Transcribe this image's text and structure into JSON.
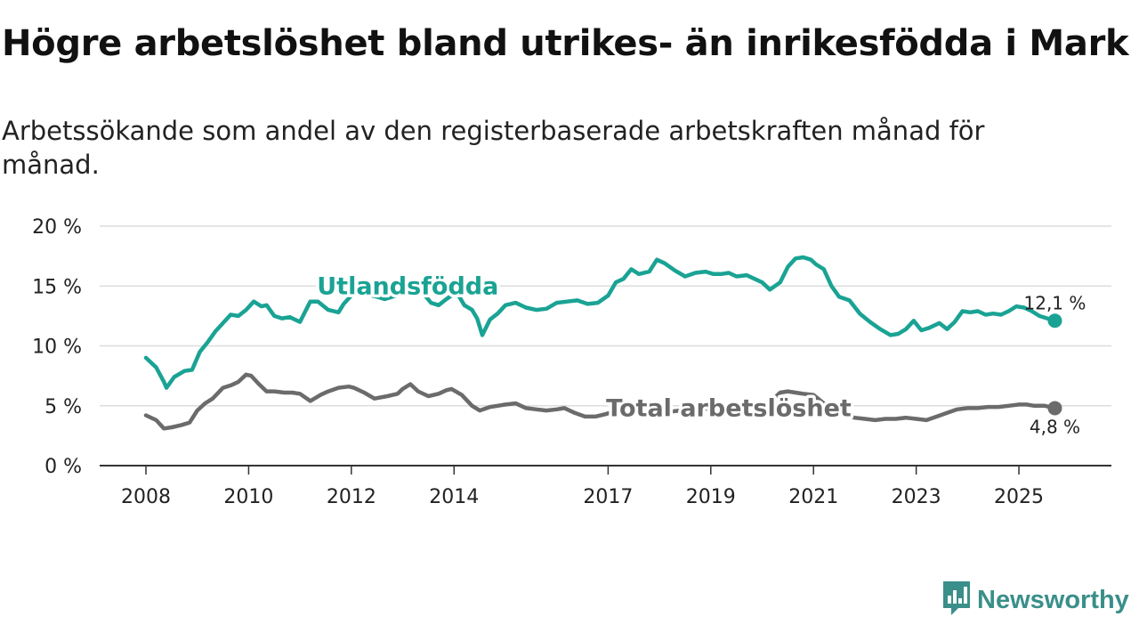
{
  "header": {
    "title": "Högre arbetslöshet bland utrikes- än inrikesfödda i Mark",
    "subtitle": "Arbetssökande som andel av den registerbaserade arbetskraften månad för månad."
  },
  "brand": {
    "name": "Newsworthy",
    "icon": "newsworthy-logo-icon",
    "color": "#3a8f8a"
  },
  "chart_data": {
    "type": "line",
    "title": "Högre arbetslöshet bland utrikes- än inrikesfödda i Mark",
    "xlabel": "",
    "ylabel": "",
    "ylim": [
      0,
      20
    ],
    "xlim": [
      2008.0,
      2025.9
    ],
    "yticks": [
      0,
      5,
      10,
      15,
      20
    ],
    "ytick_labels": [
      "0 %",
      "5 %",
      "10 %",
      "15 %",
      "20 %"
    ],
    "xticks": [
      2008,
      2010,
      2012,
      2014,
      2017,
      2019,
      2021,
      2023,
      2025
    ],
    "xtick_labels": [
      "2008",
      "2010",
      "2012",
      "2014",
      "2017",
      "2019",
      "2021",
      "2023",
      "2025"
    ],
    "grid": true,
    "series": [
      {
        "name": "Utlandsfödda",
        "color": "#1aa394",
        "end_label": "12,1 %",
        "x": [
          2008.0,
          2008.2,
          2008.35,
          2008.4,
          2008.55,
          2008.75,
          2008.9,
          2009.05,
          2009.2,
          2009.35,
          2009.5,
          2009.65,
          2009.8,
          2009.95,
          2010.1,
          2010.25,
          2010.35,
          2010.5,
          2010.65,
          2010.8,
          2011.0,
          2011.2,
          2011.35,
          2011.55,
          2011.75,
          2011.85,
          2012.0,
          2012.15,
          2012.3,
          2012.4,
          2012.5,
          2012.65,
          2012.8,
          2012.95,
          2013.1,
          2013.25,
          2013.4,
          2013.55,
          2013.7,
          2013.85,
          2014.05,
          2014.2,
          2014.35,
          2014.45,
          2014.55,
          2014.7,
          2014.85,
          2015.0,
          2015.2,
          2015.4,
          2015.6,
          2015.8,
          2016.0,
          2016.2,
          2016.4,
          2016.6,
          2016.8,
          2017.0,
          2017.15,
          2017.3,
          2017.45,
          2017.6,
          2017.8,
          2017.95,
          2018.1,
          2018.3,
          2018.5,
          2018.7,
          2018.9,
          2019.05,
          2019.2,
          2019.35,
          2019.5,
          2019.7,
          2019.85,
          2020.0,
          2020.15,
          2020.35,
          2020.5,
          2020.65,
          2020.8,
          2020.95,
          2021.05,
          2021.2,
          2021.35,
          2021.5,
          2021.7,
          2021.9,
          2022.1,
          2022.3,
          2022.5,
          2022.65,
          2022.8,
          2022.95,
          2023.1,
          2023.25,
          2023.45,
          2023.6,
          2023.75,
          2023.9,
          2024.05,
          2024.2,
          2024.35,
          2024.5,
          2024.65,
          2024.8,
          2024.95,
          2025.1,
          2025.25,
          2025.4,
          2025.55,
          2025.7
        ],
        "values": [
          9.0,
          8.2,
          7.0,
          6.5,
          7.4,
          7.9,
          8.0,
          9.5,
          10.3,
          11.2,
          11.9,
          12.6,
          12.5,
          13.0,
          13.7,
          13.3,
          13.4,
          12.5,
          12.3,
          12.4,
          12.0,
          13.7,
          13.7,
          13.0,
          12.8,
          13.5,
          14.2,
          15.3,
          14.5,
          14.2,
          14.1,
          13.9,
          14.1,
          14.3,
          14.6,
          14.7,
          14.4,
          13.6,
          13.4,
          13.9,
          14.5,
          13.4,
          13.0,
          12.3,
          10.9,
          12.2,
          12.7,
          13.4,
          13.6,
          13.2,
          13.0,
          13.1,
          13.6,
          13.7,
          13.8,
          13.5,
          13.6,
          14.2,
          15.3,
          15.6,
          16.4,
          16.0,
          16.2,
          17.2,
          16.9,
          16.3,
          15.8,
          16.1,
          16.2,
          16.0,
          16.0,
          16.1,
          15.8,
          15.9,
          15.6,
          15.3,
          14.7,
          15.3,
          16.6,
          17.3,
          17.4,
          17.2,
          16.8,
          16.4,
          15.0,
          14.1,
          13.8,
          12.7,
          12.0,
          11.4,
          10.9,
          11.0,
          11.4,
          12.1,
          11.3,
          11.5,
          11.9,
          11.4,
          12.0,
          12.9,
          12.8,
          12.9,
          12.6,
          12.7,
          12.6,
          12.9,
          13.3,
          13.2,
          12.9,
          12.5,
          12.3,
          12.1
        ]
      },
      {
        "name": "Total arbetslöshet",
        "color": "#6b6b6b",
        "end_label": "4,8 %",
        "x": [
          2008.0,
          2008.2,
          2008.35,
          2008.5,
          2008.7,
          2008.85,
          2009.0,
          2009.15,
          2009.3,
          2009.5,
          2009.65,
          2009.8,
          2009.95,
          2010.05,
          2010.2,
          2010.35,
          2010.5,
          2010.7,
          2010.85,
          2011.0,
          2011.2,
          2011.4,
          2011.55,
          2011.75,
          2011.95,
          2012.05,
          2012.25,
          2012.45,
          2012.7,
          2012.9,
          2013.0,
          2013.15,
          2013.3,
          2013.5,
          2013.7,
          2013.85,
          2013.95,
          2014.15,
          2014.35,
          2014.5,
          2014.7,
          2014.85,
          2015.0,
          2015.2,
          2015.4,
          2015.6,
          2015.8,
          2016.0,
          2016.15,
          2016.35,
          2016.55,
          2016.75,
          2016.95,
          2017.1,
          2017.25,
          2017.45,
          2017.6,
          2017.8,
          2018.0,
          2018.2,
          2018.4,
          2018.6,
          2018.8,
          2019.0,
          2019.2,
          2019.4,
          2019.6,
          2019.8,
          2020.0,
          2020.2,
          2020.35,
          2020.5,
          2020.65,
          2020.8,
          2021.0,
          2021.2,
          2021.4,
          2021.6,
          2021.8,
          2022.0,
          2022.2,
          2022.4,
          2022.6,
          2022.8,
          2023.0,
          2023.2,
          2023.4,
          2023.6,
          2023.8,
          2024.0,
          2024.2,
          2024.4,
          2024.6,
          2024.8,
          2025.0,
          2025.15,
          2025.3,
          2025.5,
          2025.7
        ],
        "values": [
          4.2,
          3.8,
          3.1,
          3.2,
          3.4,
          3.6,
          4.6,
          5.2,
          5.6,
          6.5,
          6.7,
          7.0,
          7.6,
          7.5,
          6.8,
          6.2,
          6.2,
          6.1,
          6.1,
          6.0,
          5.4,
          5.9,
          6.2,
          6.5,
          6.6,
          6.5,
          6.1,
          5.6,
          5.8,
          6.0,
          6.4,
          6.8,
          6.2,
          5.8,
          6.0,
          6.3,
          6.4,
          5.9,
          5.0,
          4.6,
          4.9,
          5.0,
          5.1,
          5.2,
          4.8,
          4.7,
          4.6,
          4.7,
          4.8,
          4.4,
          4.1,
          4.1,
          4.3,
          4.5,
          4.3,
          4.3,
          4.4,
          4.5,
          4.6,
          4.5,
          4.6,
          4.7,
          4.7,
          4.8,
          4.7,
          4.8,
          4.9,
          5.0,
          5.1,
          5.5,
          6.1,
          6.2,
          6.1,
          6.0,
          5.9,
          5.2,
          4.8,
          4.3,
          4.0,
          3.9,
          3.8,
          3.9,
          3.9,
          4.0,
          3.9,
          3.8,
          4.1,
          4.4,
          4.7,
          4.8,
          4.8,
          4.9,
          4.9,
          5.0,
          5.1,
          5.1,
          5.0,
          5.0,
          4.8
        ]
      }
    ],
    "annotations": [
      {
        "text": "Utlandsfödda",
        "series": "Utlandsfödda",
        "x": 2013.1,
        "y": 15.0
      },
      {
        "text": "Total arbetslöshet",
        "series": "Total arbetslöshet",
        "x": 2019.35,
        "y": 4.8
      }
    ]
  }
}
